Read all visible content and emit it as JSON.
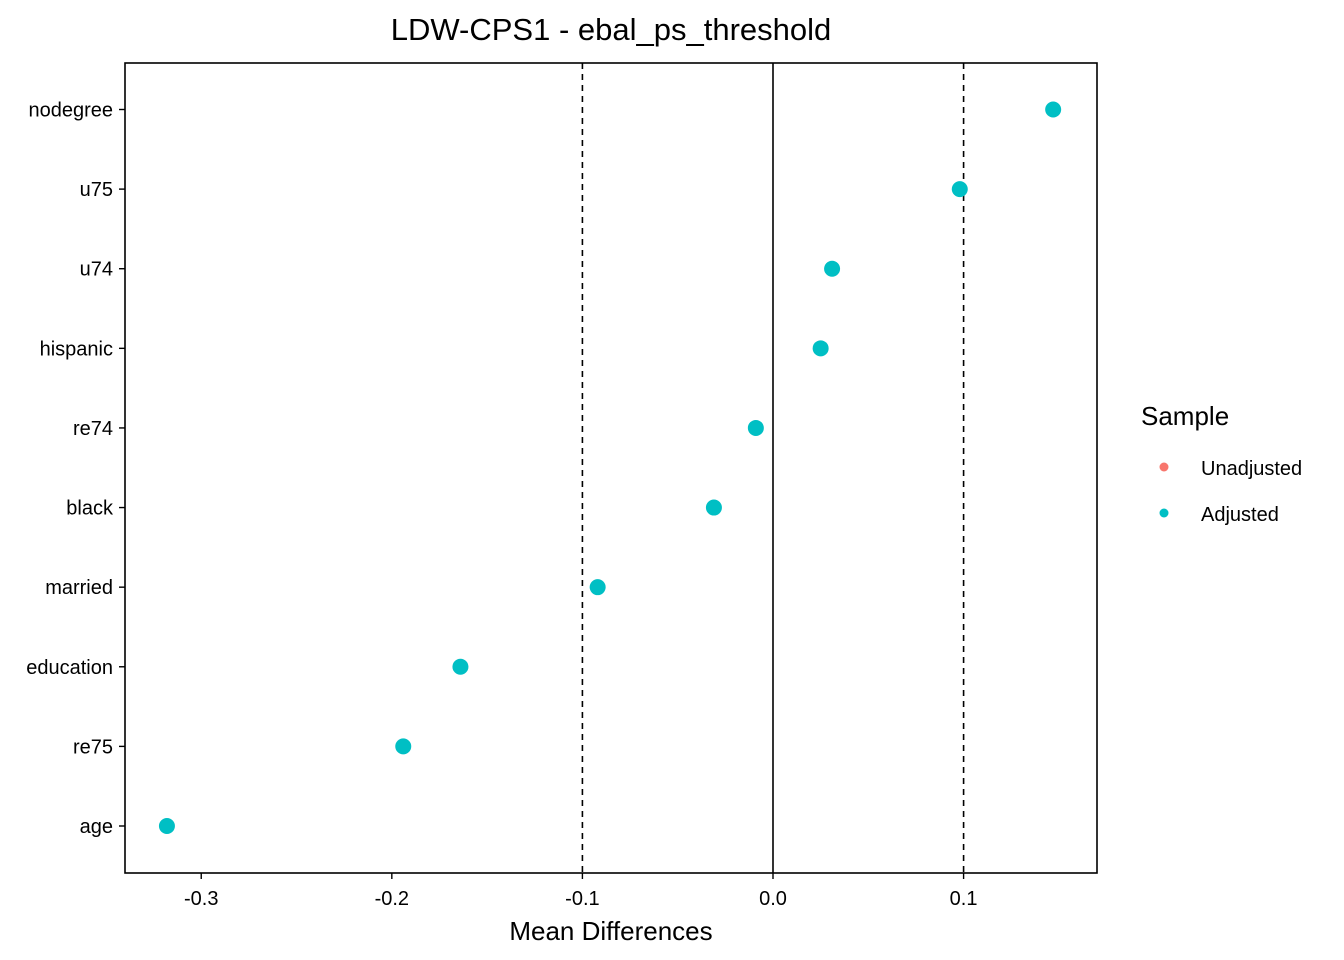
{
  "chart_data": {
    "type": "scatter",
    "title": "LDW-CPS1 - ebal_ps_threshold",
    "xlabel": "Mean Differences",
    "ylabel": "",
    "xlim": [
      -0.34,
      0.17
    ],
    "x_ticks": [
      -0.3,
      -0.2,
      -0.1,
      0.0,
      0.1
    ],
    "x_tick_labels": [
      "-0.3",
      "-0.2",
      "-0.1",
      "0.0",
      "0.1"
    ],
    "categories": [
      "nodegree",
      "u75",
      "u74",
      "hispanic",
      "re74",
      "black",
      "married",
      "education",
      "re75",
      "age"
    ],
    "reference_lines": [
      {
        "x": -0.1,
        "style": "dashed"
      },
      {
        "x": 0.0,
        "style": "solid"
      },
      {
        "x": 0.1,
        "style": "dashed"
      }
    ],
    "series": [
      {
        "name": "Unadjusted",
        "color": "#F8766D",
        "values": []
      },
      {
        "name": "Adjusted",
        "color": "#00BFC4",
        "values": [
          0.147,
          0.098,
          0.031,
          0.025,
          -0.009,
          -0.031,
          -0.092,
          -0.164,
          -0.194,
          -0.318
        ]
      }
    ],
    "legend": {
      "title": "Sample",
      "position": "right"
    },
    "grid": false
  }
}
